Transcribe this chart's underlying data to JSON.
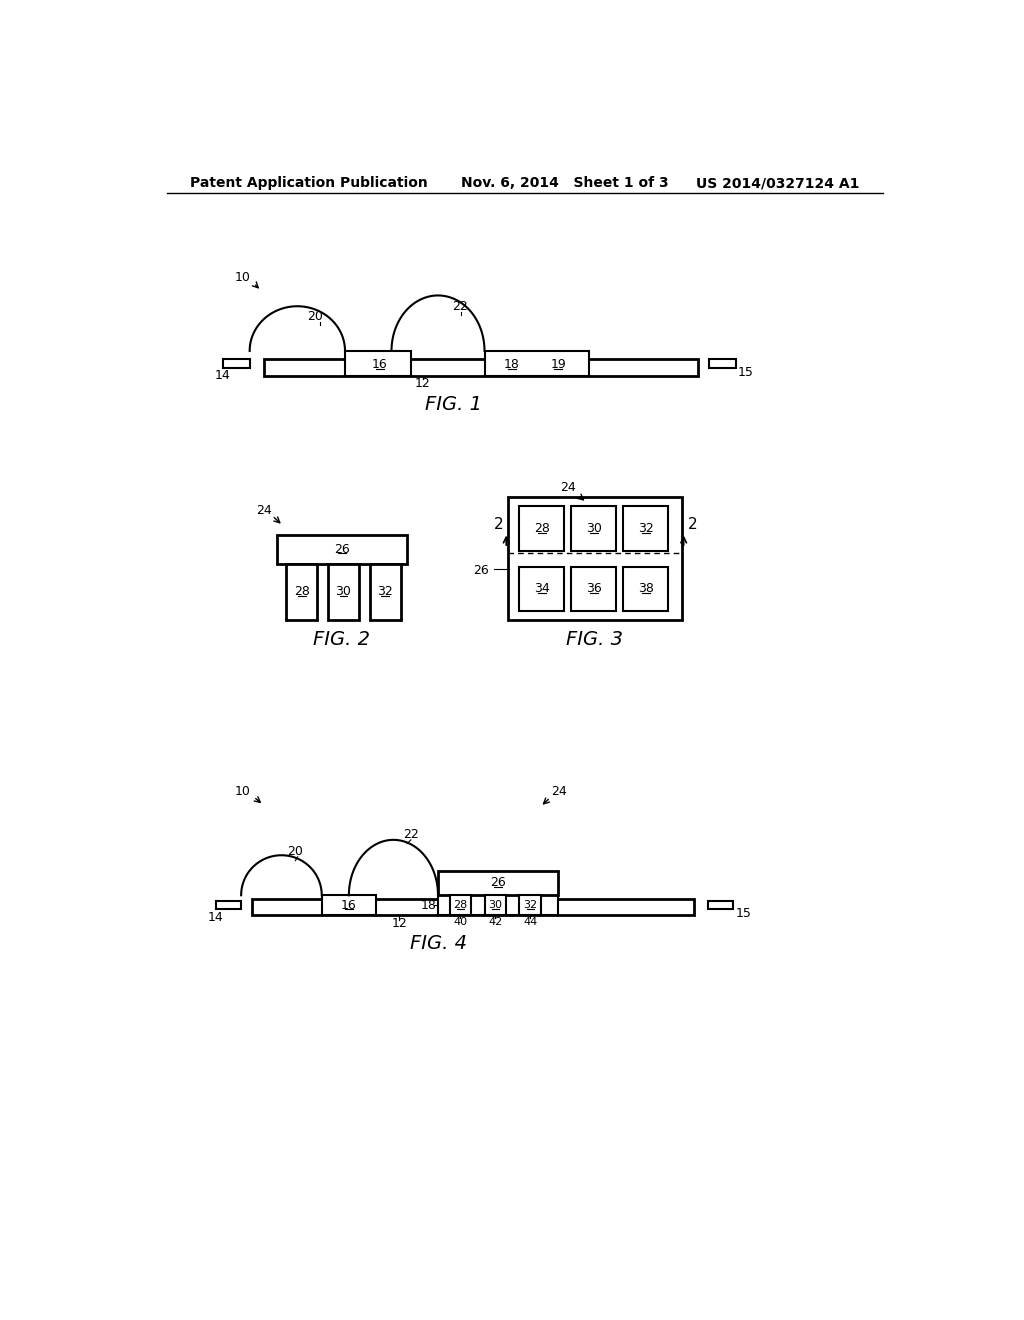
{
  "bg_color": "#ffffff",
  "header_left": "Patent Application Publication",
  "header_mid": "Nov. 6, 2014   Sheet 1 of 3",
  "header_right": "US 2014/0327124 A1"
}
